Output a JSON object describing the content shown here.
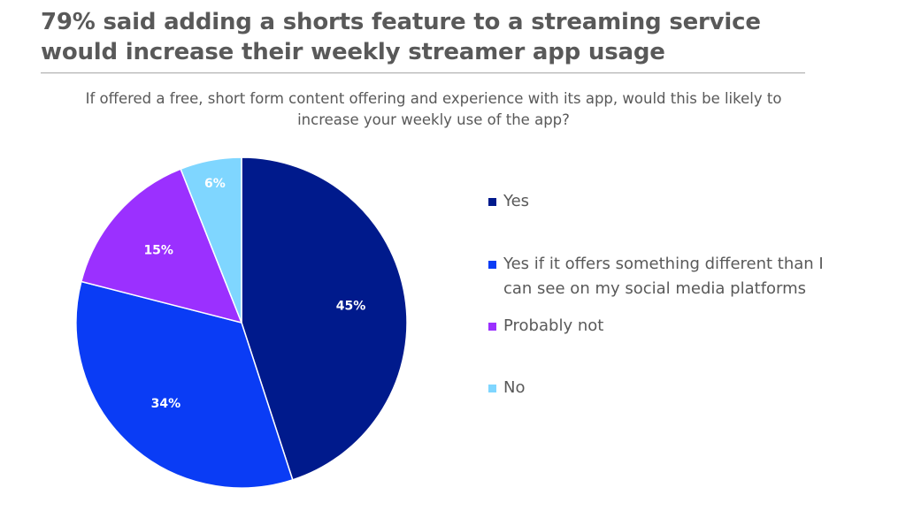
{
  "header": {
    "title_line1": "79% said adding a shorts feature to a streaming service",
    "title_line2": "would increase their weekly streamer app usage",
    "subtitle_line1": "If offered a free, short form content offering and experience with its app, would this be likely to",
    "subtitle_line2": "increase your weekly use of the app?"
  },
  "chart_data": {
    "type": "pie",
    "start_angle_deg": 0,
    "direction": "clockwise",
    "legend_position": "right",
    "series": [
      {
        "name": "Yes",
        "value": 45,
        "label": "45%",
        "color": "#001a8c"
      },
      {
        "name": "Yes if it offers something different than I can see on my social media platforms",
        "value": 34,
        "label": "34%",
        "color": "#0a3cf5"
      },
      {
        "name": "Probably not",
        "value": 15,
        "label": "15%",
        "color": "#9b30ff"
      },
      {
        "name": "No",
        "value": 6,
        "label": "6%",
        "color": "#7fd6ff"
      }
    ]
  },
  "legend": {
    "items": [
      {
        "line1": "Yes",
        "line2": ""
      },
      {
        "line1": "Yes if it offers something different than I",
        "line2": "can see on my social media platforms"
      },
      {
        "line1": "Probably not",
        "line2": ""
      },
      {
        "line1": "No",
        "line2": ""
      }
    ]
  }
}
